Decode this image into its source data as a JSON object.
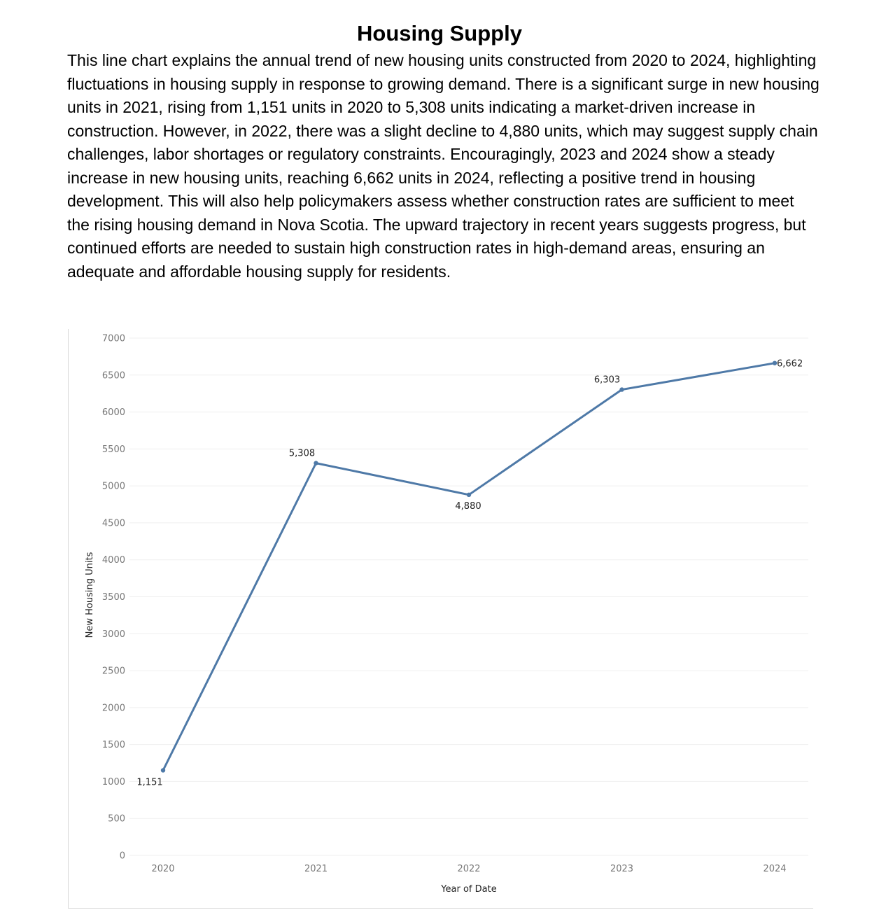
{
  "page": {
    "title": "Housing Supply",
    "description": "This line chart explains the annual trend of new housing units constructed from 2020 to 2024, highlighting fluctuations in housing supply in response to growing demand. There is a significant surge in new housing units in 2021, rising from 1,151 units in 2020 to 5,308 units indicating a market-driven increase in construction. However, in 2022, there was a slight decline to 4,880 units, which may suggest supply chain challenges, labor shortages or regulatory constraints. Encouragingly, 2023 and 2024 show a steady increase in new housing units, reaching 6,662 units in 2024, reflecting a positive trend in housing development. This will also help policymakers assess whether construction rates are sufficient to meet the rising housing demand in Nova Scotia. The upward trajectory in recent years suggests progress, but continued efforts are needed to sustain high construction rates in high-demand areas, ensuring an adequate and affordable housing supply for residents."
  },
  "colors": {
    "line": "#4e79a7",
    "grid": "#efefef",
    "frame": "#d9d9d9"
  },
  "chart_data": {
    "type": "line",
    "x": [
      "2020",
      "2021",
      "2022",
      "2023",
      "2024"
    ],
    "series": [
      {
        "values": [
          1151,
          5308,
          4880,
          6303,
          6662
        ]
      }
    ],
    "data_labels": [
      "1,151",
      "5,308",
      "4,880",
      "6,303",
      "6,662"
    ],
    "xlabel": "Year of Date",
    "ylabel": "New Housing Units",
    "ylim": [
      0,
      7000
    ],
    "yticks": [
      0,
      500,
      1000,
      1500,
      2000,
      2500,
      3000,
      3500,
      4000,
      4500,
      5000,
      5500,
      6000,
      6500,
      7000
    ],
    "grid": true,
    "markers": true
  }
}
